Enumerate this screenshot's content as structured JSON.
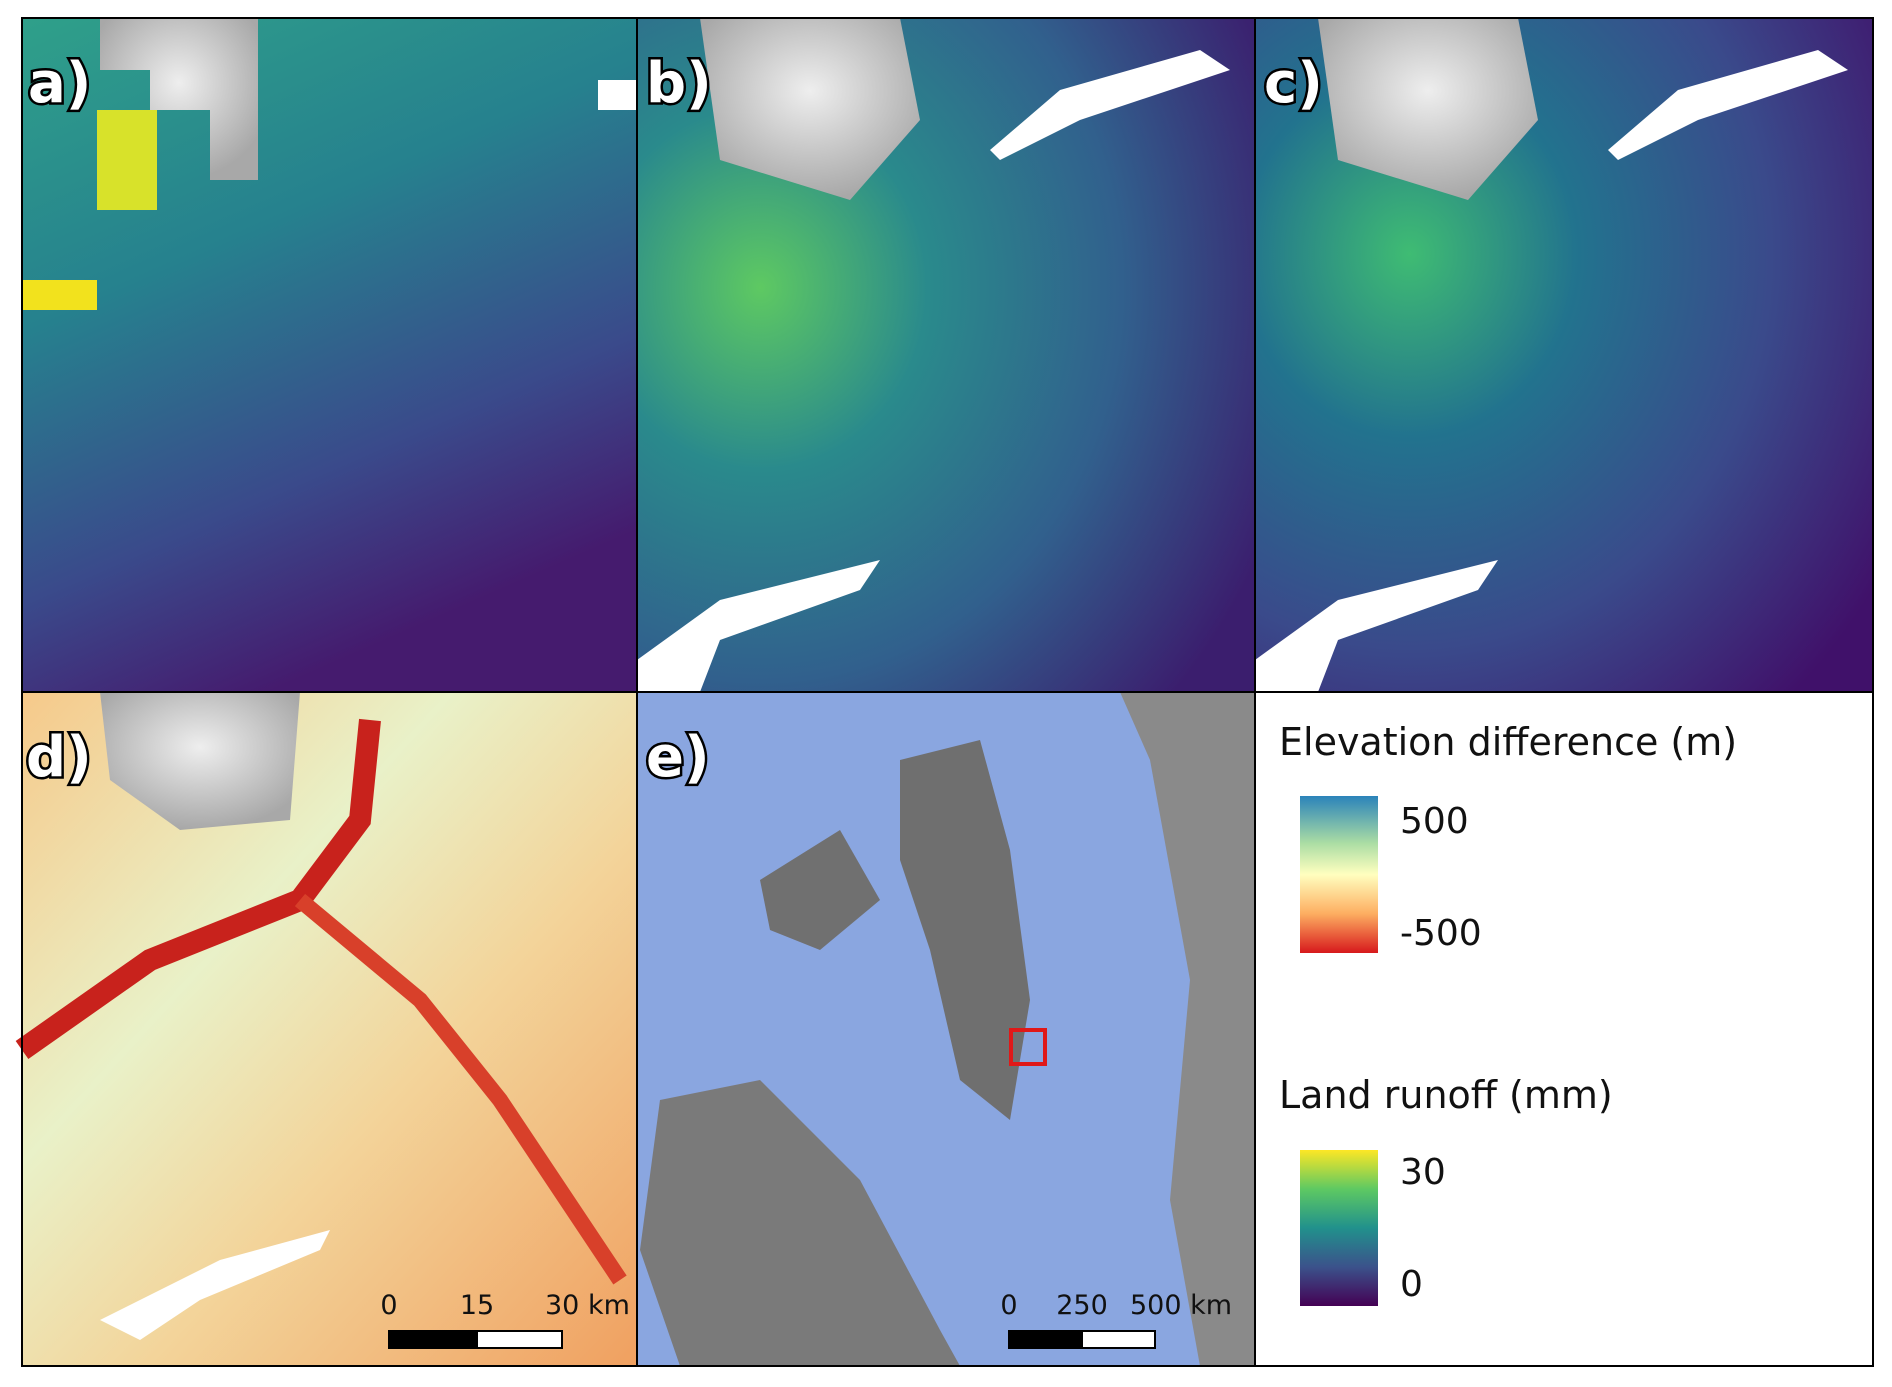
{
  "panels": [
    {
      "label": "a)"
    },
    {
      "label": "b)"
    },
    {
      "label": "c)"
    },
    {
      "label": "d)"
    },
    {
      "label": "e)"
    }
  ],
  "legends": [
    {
      "title": "Elevation difference (m)",
      "ticks": [
        500,
        -500
      ]
    },
    {
      "title": "Land runoff (mm)",
      "ticks": [
        30,
        0
      ]
    }
  ],
  "scale_bars": [
    {
      "labels": [
        "0",
        "15",
        "30 km"
      ]
    },
    {
      "labels": [
        "0",
        "250",
        "500 km"
      ]
    }
  ]
}
